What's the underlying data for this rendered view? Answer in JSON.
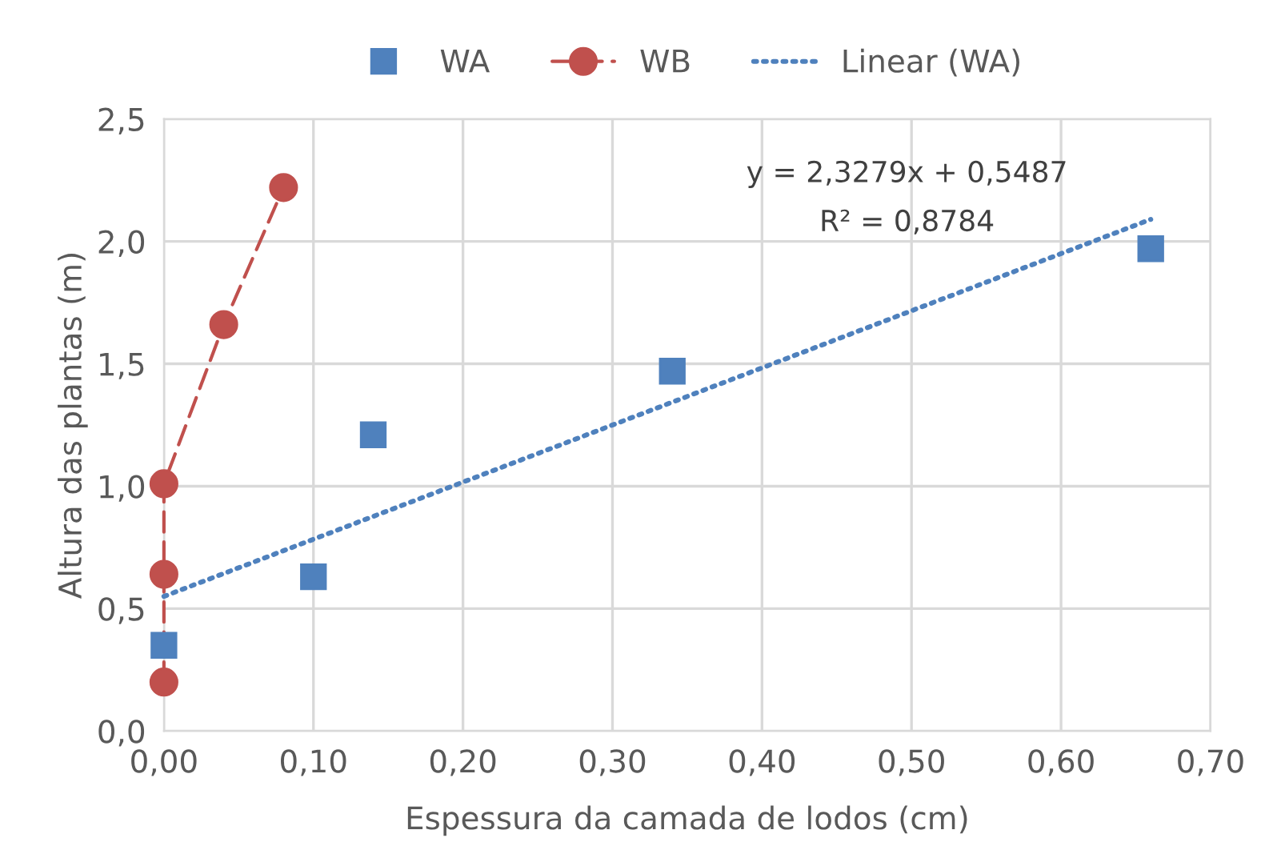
{
  "chart_data": {
    "type": "scatter",
    "xlabel": "Espessura da camada de lodos (cm)",
    "ylabel": "Altura das plantas (m)",
    "series": [
      {
        "name": "WA",
        "marker": "square",
        "color": "#4f81bd",
        "x": [
          0,
          0.1,
          0.14,
          0.34,
          0.66
        ],
        "values": [
          0.35,
          0.63,
          1.21,
          1.47,
          1.97
        ]
      },
      {
        "name": "WB",
        "type": "line",
        "marker": "circle",
        "line_style": "dashed",
        "color": "#c0504d",
        "x": [
          0,
          0,
          0,
          0.04,
          0.08
        ],
        "values": [
          0.2,
          0.64,
          1.01,
          1.66,
          2.22
        ]
      },
      {
        "name": "Linear (WA)",
        "type": "line",
        "marker": "none",
        "line_style": "dotted",
        "color": "#4f81bd",
        "x": [
          0,
          0.66
        ],
        "values": [
          0.55,
          2.09
        ]
      }
    ],
    "annotations": [
      "y = 2,3279x + 0,5487",
      "R² = 0,8784"
    ],
    "xlim": [
      0,
      0.7
    ],
    "ylim": [
      0,
      2.5
    ],
    "xticks": [
      {
        "value": 0,
        "label": "0,00"
      },
      {
        "value": 0.1,
        "label": "0,10"
      },
      {
        "value": 0.2,
        "label": "0,20"
      },
      {
        "value": 0.3,
        "label": "0,30"
      },
      {
        "value": 0.4,
        "label": "0,40"
      },
      {
        "value": 0.5,
        "label": "0,50"
      },
      {
        "value": 0.6,
        "label": "0,60"
      },
      {
        "value": 0.7,
        "label": "0,70"
      }
    ],
    "yticks": [
      {
        "value": 0,
        "label": "0,0"
      },
      {
        "value": 0.5,
        "label": "0,5"
      },
      {
        "value": 1.0,
        "label": "1,0"
      },
      {
        "value": 1.5,
        "label": "1,5"
      },
      {
        "value": 2.0,
        "label": "2,0"
      },
      {
        "value": 2.5,
        "label": "2,5"
      }
    ],
    "grid": true,
    "legend": "top"
  }
}
